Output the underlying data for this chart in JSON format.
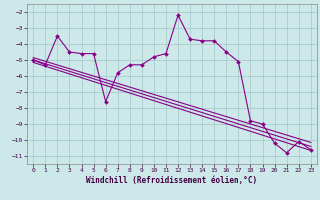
{
  "xlabel": "Windchill (Refroidissement éolien,°C)",
  "bg_color": "#cce8e8",
  "grid_color": "#aacccc",
  "line_color": "#880088",
  "xlim": [
    -0.5,
    23.5
  ],
  "ylim": [
    -11.5,
    -1.5
  ],
  "xticks": [
    0,
    1,
    2,
    3,
    4,
    5,
    6,
    7,
    8,
    9,
    10,
    11,
    12,
    13,
    14,
    15,
    16,
    17,
    18,
    19,
    20,
    21,
    22,
    23
  ],
  "yticks": [
    -11,
    -10,
    -9,
    -8,
    -7,
    -6,
    -5,
    -4,
    -3,
    -2
  ],
  "line1_x": [
    0,
    1,
    2,
    3,
    4,
    5,
    6,
    7,
    8,
    9,
    10,
    11,
    12,
    13,
    14,
    15,
    16,
    17,
    18,
    19,
    20,
    21,
    22,
    23
  ],
  "line1_y": [
    -5.0,
    -5.3,
    -3.5,
    -4.5,
    -4.6,
    -4.6,
    -7.6,
    -5.8,
    -5.3,
    -5.3,
    -4.8,
    -4.6,
    -2.2,
    -3.7,
    -3.8,
    -3.8,
    -4.5,
    -5.1,
    -8.8,
    -9.0,
    -10.2,
    -10.8,
    -10.1,
    -10.6
  ],
  "line2_x": [
    0,
    23
  ],
  "line2_y": [
    -5.0,
    -10.4
  ],
  "line3_x": [
    0,
    23
  ],
  "line3_y": [
    -5.15,
    -10.65
  ],
  "line4_x": [
    0,
    23
  ],
  "line4_y": [
    -4.85,
    -10.15
  ]
}
